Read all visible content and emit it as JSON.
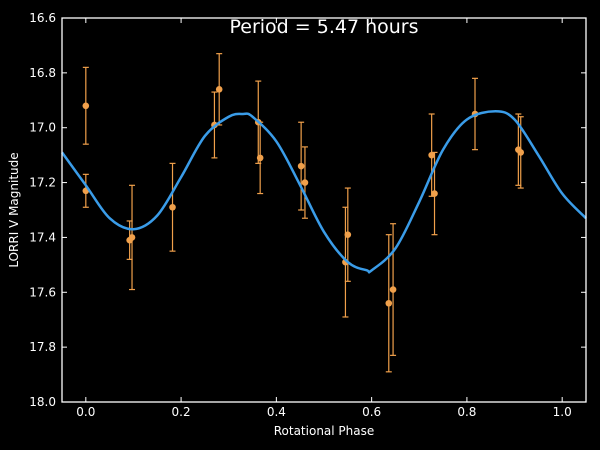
{
  "chart_data": {
    "type": "scatter",
    "title": "Period = 5.47 hours",
    "xlabel": "Rotational Phase",
    "ylabel": "LORRI V Magnitude",
    "xlim": [
      -0.05,
      1.05
    ],
    "ylim": [
      18.0,
      16.6
    ],
    "y_axis_inverted": true,
    "x_ticks": [
      {
        "value": 0.0,
        "label": "0.0"
      },
      {
        "value": 0.2,
        "label": "0.2"
      },
      {
        "value": 0.4,
        "label": "0.4"
      },
      {
        "value": 0.6,
        "label": "0.6"
      },
      {
        "value": 0.8,
        "label": "0.8"
      },
      {
        "value": 1.0,
        "label": "1.0"
      }
    ],
    "y_ticks": [
      {
        "value": 16.6,
        "label": "16.6"
      },
      {
        "value": 16.8,
        "label": "16.8"
      },
      {
        "value": 17.0,
        "label": "17.0"
      },
      {
        "value": 17.2,
        "label": "17.2"
      },
      {
        "value": 17.4,
        "label": "17.4"
      },
      {
        "value": 17.6,
        "label": "17.6"
      },
      {
        "value": 17.8,
        "label": "17.8"
      },
      {
        "value": 18.0,
        "label": "18.0"
      }
    ],
    "grid": false,
    "colors": {
      "background": "#000000",
      "axes": "#ffffff",
      "points": "#f0a04b",
      "curve": "#3a9ce8"
    },
    "series": [
      {
        "kind": "points_with_error_bars",
        "points": [
          {
            "x": 0.0,
            "y": 16.92,
            "err": 0.14
          },
          {
            "x": 0.0,
            "y": 17.23,
            "err": 0.06
          },
          {
            "x": 0.092,
            "y": 17.41,
            "err": 0.07
          },
          {
            "x": 0.097,
            "y": 17.4,
            "err": 0.19
          },
          {
            "x": 0.182,
            "y": 17.29,
            "err": 0.16
          },
          {
            "x": 0.27,
            "y": 16.99,
            "err": 0.12
          },
          {
            "x": 0.28,
            "y": 16.86,
            "err": 0.13
          },
          {
            "x": 0.362,
            "y": 16.98,
            "err": 0.15
          },
          {
            "x": 0.366,
            "y": 17.11,
            "err": 0.13
          },
          {
            "x": 0.452,
            "y": 17.14,
            "err": 0.16
          },
          {
            "x": 0.46,
            "y": 17.2,
            "err": 0.13
          },
          {
            "x": 0.545,
            "y": 17.49,
            "err": 0.2
          },
          {
            "x": 0.55,
            "y": 17.39,
            "err": 0.17
          },
          {
            "x": 0.636,
            "y": 17.64,
            "err": 0.25
          },
          {
            "x": 0.645,
            "y": 17.59,
            "err": 0.24
          },
          {
            "x": 0.726,
            "y": 17.1,
            "err": 0.15
          },
          {
            "x": 0.732,
            "y": 17.24,
            "err": 0.15
          },
          {
            "x": 0.817,
            "y": 16.95,
            "err": 0.13
          },
          {
            "x": 0.908,
            "y": 17.08,
            "err": 0.13
          },
          {
            "x": 0.913,
            "y": 17.09,
            "err": 0.13
          }
        ]
      },
      {
        "kind": "curve",
        "x": [
          -0.05,
          0.0,
          0.05,
          0.1,
          0.15,
          0.2,
          0.25,
          0.3,
          0.33,
          0.35,
          0.4,
          0.45,
          0.5,
          0.55,
          0.59,
          0.6,
          0.65,
          0.7,
          0.75,
          0.8,
          0.86,
          0.9,
          0.95,
          1.0,
          1.05
        ],
        "y": [
          17.09,
          17.21,
          17.33,
          17.37,
          17.32,
          17.18,
          17.03,
          16.96,
          16.95,
          16.96,
          17.05,
          17.21,
          17.38,
          17.49,
          17.52,
          17.52,
          17.44,
          17.27,
          17.08,
          16.97,
          16.94,
          16.97,
          17.1,
          17.24,
          17.33
        ]
      }
    ]
  }
}
